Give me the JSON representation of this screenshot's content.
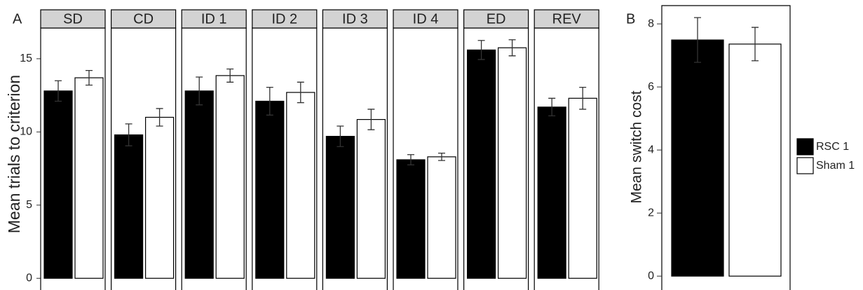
{
  "chart_data": [
    {
      "type": "bar",
      "panel_label": "A",
      "ylabel": "Mean trials to criterion",
      "categories": [
        "SD",
        "CD",
        "ID 1",
        "ID 2",
        "ID 3",
        "ID 4",
        "ED",
        "REV"
      ],
      "series": [
        {
          "color": "#000000",
          "values": [
            12.8,
            9.8,
            12.8,
            12.1,
            9.7,
            8.1,
            15.6,
            11.7
          ],
          "errors": [
            0.7,
            0.75,
            0.95,
            0.95,
            0.7,
            0.35,
            0.65,
            0.6
          ]
        },
        {
          "color": "#ffffff",
          "values": [
            13.7,
            11.0,
            13.85,
            12.7,
            10.85,
            8.3,
            15.75,
            12.3
          ],
          "errors": [
            0.5,
            0.6,
            0.45,
            0.7,
            0.7,
            0.25,
            0.55,
            0.75
          ]
        }
      ],
      "ylim": [
        -0.8,
        17.1
      ],
      "yticks": [
        0,
        5,
        10,
        15
      ]
    },
    {
      "type": "bar",
      "panel_label": "B",
      "ylabel": "Mean switch cost",
      "series": [
        {
          "name": "RSC 1",
          "color": "#000000",
          "values": [
            7.49
          ],
          "errors": [
            0.71
          ]
        },
        {
          "name": "Sham 1",
          "color": "#ffffff",
          "values": [
            7.36
          ],
          "errors": [
            0.53
          ]
        }
      ],
      "ylim": [
        -0.44,
        8.58
      ],
      "yticks": [
        0,
        2,
        4,
        6,
        8
      ]
    }
  ]
}
